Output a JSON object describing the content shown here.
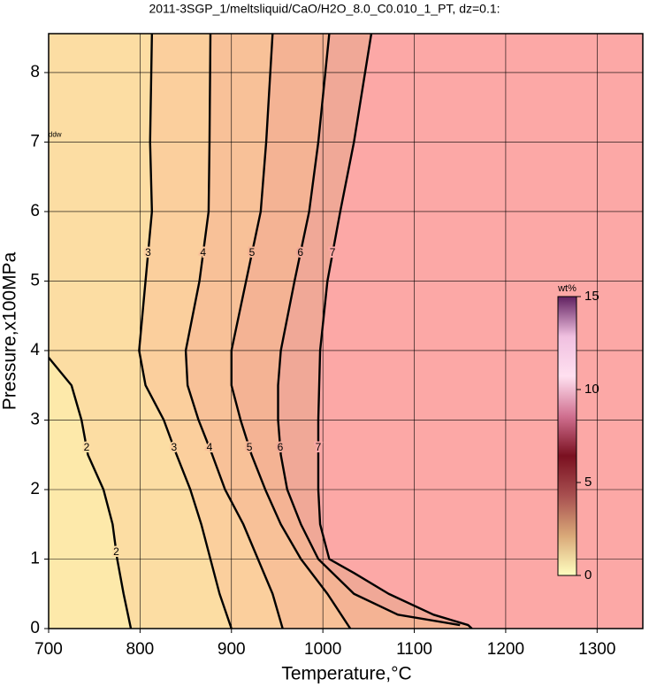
{
  "chart_data": {
    "type": "contour",
    "title": "2011-3SGP_1/meltsliquid/CaO/H2O_8.0_C0.010_1_PT, dz=0.1:",
    "x_label": "Temperature,°C",
    "y_label": "Pressure,x100MPa",
    "xlim": [
      700,
      1350
    ],
    "ylim": [
      0,
      8.56
    ],
    "xticks": [
      700,
      800,
      900,
      1000,
      1100,
      1200,
      1300
    ],
    "yticks": [
      0,
      1,
      2,
      3,
      4,
      5,
      6,
      7,
      8
    ],
    "grid": true,
    "background": "#fde9aa",
    "series": [
      {
        "name": "2",
        "color": "#fcdda3",
        "x": [
          700,
          725,
          736,
          743,
          760,
          770,
          775,
          782,
          790
        ],
        "y": [
          3.9,
          3.5,
          3,
          2.5,
          2,
          1.5,
          1,
          0.5,
          0
        ]
      },
      {
        "name": "3",
        "color": "#fbcf9d",
        "x": [
          813,
          811,
          813,
          806,
          799,
          806,
          826,
          840,
          855,
          867,
          877,
          887,
          900
        ],
        "y": [
          8.56,
          7,
          6,
          5,
          4,
          3.5,
          3,
          2.5,
          2,
          1.5,
          1,
          0.5,
          0
        ]
      },
      {
        "name": "4",
        "color": "#f8c198",
        "x": [
          877,
          876,
          875,
          865,
          850,
          852,
          864,
          879,
          893,
          913,
          929,
          945,
          956
        ],
        "y": [
          8.56,
          7,
          6,
          5,
          4,
          3.5,
          3,
          2.5,
          2,
          1.5,
          1,
          0.5,
          0
        ]
      },
      {
        "name": "5",
        "color": "#f4b394",
        "x": [
          945,
          938,
          932,
          916,
          900,
          900,
          910,
          922,
          937,
          954,
          976,
          1005,
          1030
        ],
        "y": [
          8.56,
          7,
          6,
          5,
          4,
          3.5,
          3,
          2.5,
          2,
          1.5,
          1,
          0.5,
          0
        ]
      },
      {
        "name": "6",
        "color": "#f0a897",
        "x": [
          1007,
          995,
          985,
          969,
          954,
          951,
          951,
          954,
          961,
          976,
          995,
          1034,
          1082,
          1150
        ],
        "y": [
          8.56,
          7,
          6,
          5,
          4,
          3.5,
          3,
          2.5,
          2,
          1.5,
          1,
          0.5,
          0.2,
          0.05
        ]
      },
      {
        "name": "7",
        "color": "#fca8a6",
        "x": [
          1053,
          1034,
          1019,
          1005,
          997,
          995,
          995,
          997,
          1007,
          1034,
          1072,
          1121,
          1159,
          1163
        ],
        "y": [
          8.56,
          7,
          6,
          5,
          4,
          3,
          2,
          1.5,
          1,
          0.8,
          0.5,
          0.2,
          0.05,
          0
        ]
      }
    ],
    "annotation": "ddw",
    "colorbar": {
      "label": "wt%",
      "lim": [
        0,
        15
      ],
      "ticks": [
        0,
        5,
        10,
        15
      ],
      "colors": [
        "#ffffc0",
        "#d9a878",
        "#a85050",
        "#7a1020",
        "#d07090",
        "#ffe0f0",
        "#f0c0e0",
        "#602060"
      ]
    }
  }
}
